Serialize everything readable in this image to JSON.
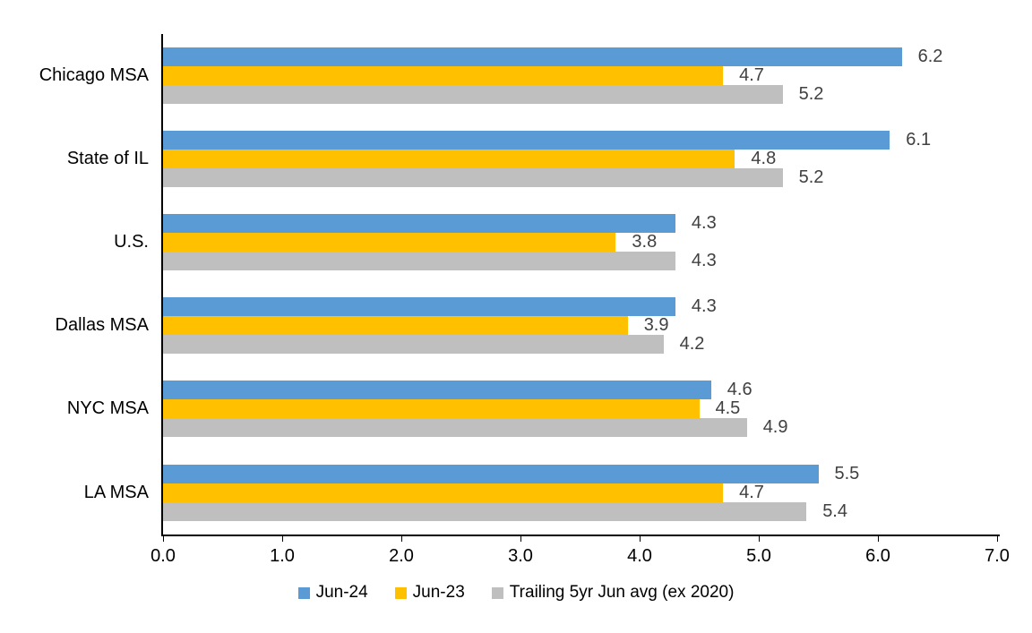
{
  "figure": {
    "background": "#FFFFFF"
  },
  "chart_data": {
    "type": "bar",
    "orientation": "horizontal",
    "title": "",
    "categories": [
      "Chicago MSA",
      "State of IL",
      "U.S.",
      "Dallas MSA",
      "NYC MSA",
      "LA MSA"
    ],
    "series": [
      {
        "name": "Jun-24",
        "color": "#5B9BD5",
        "values": [
          6.2,
          6.1,
          4.3,
          4.3,
          4.6,
          5.5
        ]
      },
      {
        "name": "Jun-23",
        "color": "#FFC000",
        "values": [
          4.7,
          4.8,
          3.8,
          3.9,
          4.5,
          4.7
        ]
      },
      {
        "name": "Trailing 5yr Jun avg (ex 2020)",
        "color": "#BFBFBF",
        "values": [
          5.2,
          5.2,
          4.3,
          4.2,
          4.9,
          5.4
        ]
      }
    ],
    "xlim": [
      0,
      7
    ],
    "x_ticks": [
      "0.0",
      "1.0",
      "2.0",
      "3.0",
      "4.0",
      "5.0",
      "6.0",
      "7.0"
    ],
    "grid": false,
    "legend_position": "bottom",
    "value_labels": true,
    "value_label_color": "#404040",
    "value_label_decimals": 1,
    "axis_color": "#000000"
  }
}
